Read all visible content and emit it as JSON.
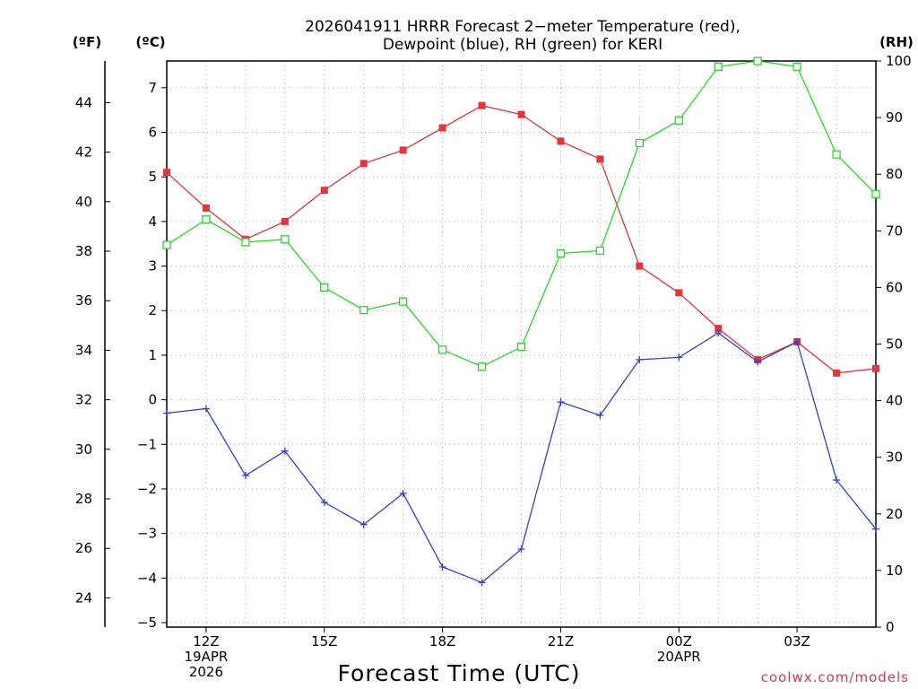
{
  "chart_data": {
    "type": "line",
    "title_line1": "2026041911 HRRR Forecast 2−meter Temperature (red),",
    "title_line2": "Dewpoint (blue), RH (green) for KERI",
    "xlabel": "Forecast Time (UTC)",
    "credit": "coolwx.com/models",
    "unit_f": "(ºF)",
    "unit_c": "(ºC)",
    "unit_rh": "(RH)",
    "x_hours": [
      11,
      12,
      13,
      14,
      15,
      16,
      17,
      18,
      19,
      20,
      21,
      22,
      23,
      24,
      25,
      26,
      27,
      28,
      29
    ],
    "x_range": [
      11,
      29
    ],
    "x_ticks": [
      {
        "hour": 12,
        "lines": [
          "12Z",
          "19APR",
          "2026"
        ]
      },
      {
        "hour": 15,
        "lines": [
          "15Z"
        ]
      },
      {
        "hour": 18,
        "lines": [
          "18Z"
        ]
      },
      {
        "hour": 21,
        "lines": [
          "21Z"
        ]
      },
      {
        "hour": 24,
        "lines": [
          "00Z",
          "20APR"
        ]
      },
      {
        "hour": 27,
        "lines": [
          "03Z"
        ]
      }
    ],
    "ylim_c": [
      -5.1,
      7.6
    ],
    "y_ticks_c": [
      "7",
      "6",
      "5",
      "4",
      "3",
      "2",
      "1",
      "0",
      "−1",
      "−2",
      "−3",
      "−4",
      "−5"
    ],
    "y_ticks_f": [
      "44",
      "42",
      "40",
      "38",
      "36",
      "34",
      "32",
      "30",
      "28",
      "26",
      "24"
    ],
    "ylim_rh": [
      0,
      100
    ],
    "y_ticks_rh": [
      "100",
      "90",
      "80",
      "70",
      "60",
      "50",
      "40",
      "30",
      "20",
      "10",
      "0"
    ],
    "grid": true,
    "series": [
      {
        "name": "Temperature",
        "unit": "C",
        "color": "#e8333a",
        "marker": "filled-square",
        "values": [
          5.1,
          4.3,
          3.6,
          4.0,
          4.7,
          5.3,
          5.6,
          6.1,
          6.6,
          6.4,
          5.8,
          5.4,
          3.0,
          2.4,
          1.6,
          0.9,
          1.3,
          0.6,
          0.7
        ]
      },
      {
        "name": "Dewpoint",
        "unit": "C",
        "color": "#2f3fe0",
        "marker": "plus",
        "values": [
          -0.3,
          -0.2,
          -1.7,
          -1.15,
          -2.3,
          -2.8,
          -2.1,
          -3.75,
          -4.1,
          -3.35,
          -0.05,
          -0.35,
          0.9,
          0.95,
          1.5,
          0.85,
          1.3,
          -1.8,
          -2.9
        ]
      },
      {
        "name": "RH",
        "unit": "%",
        "color": "#22dd22",
        "marker": "open-square",
        "values": [
          67.5,
          72,
          68,
          68.5,
          60,
          56,
          57.5,
          49,
          46,
          49.5,
          66,
          66.5,
          85.5,
          89.5,
          99,
          100,
          99,
          83.5,
          76.5
        ]
      }
    ]
  }
}
